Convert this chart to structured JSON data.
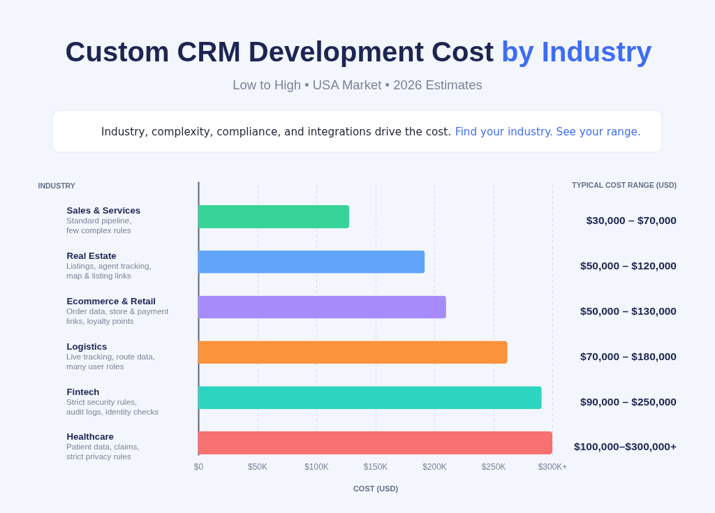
{
  "chart_data": {
    "type": "bar",
    "orientation": "horizontal",
    "title": "Custom CRM Development Cost by Industry",
    "subtitle": "Low to High • USA Market • 2026 Estimates",
    "ylabel": "INDUSTRY",
    "xlabel": "COST (USD)",
    "categories": [
      "Sales & Services",
      "Real Estate",
      "Ecommerce & Retail",
      "Logistics",
      "Fintech",
      "Healthcare"
    ],
    "values": [
      128000,
      192000,
      210000,
      262000,
      291000,
      300000
    ],
    "colors": [
      "#37d399",
      "#60a5fa",
      "#a78bfa",
      "#fb923c",
      "#2dd4bf",
      "#f87171"
    ],
    "xlim": [
      0,
      300000
    ],
    "xticks": [
      {
        "value": 0,
        "label": "$0"
      },
      {
        "value": 50000,
        "label": "$50K"
      },
      {
        "value": 100000,
        "label": "$100K"
      },
      {
        "value": 150000,
        "label": "$150K"
      },
      {
        "value": 200000,
        "label": "$200K"
      },
      {
        "value": 250000,
        "label": "$250K"
      },
      {
        "value": 300000,
        "label": "$300K+"
      }
    ],
    "grid": "x",
    "annotations": [
      "Industry, complexity, compliance, and integrations drive the cost.",
      "Find your industry. See your range.",
      "TYPICAL COST RANGE (USD)",
      "Standard pipeline,\nfew complex rules",
      "Listings, agent tracking,\nmap & listing links",
      "Order data, store & payment\nlinks, loyalty points",
      "Live tracking, route data,\nmany user roles",
      "Strict security rules,\naudit logs, identity checks",
      "Patient data, claims,\nstrict privacy rules",
      "$30,000 – $70,000",
      "$50,000 – $120,000",
      "$50,000 – $130,000",
      "$70,000 – $180,000",
      "$90,000 – $250,000",
      "$100,000–$300,000+"
    ]
  }
}
